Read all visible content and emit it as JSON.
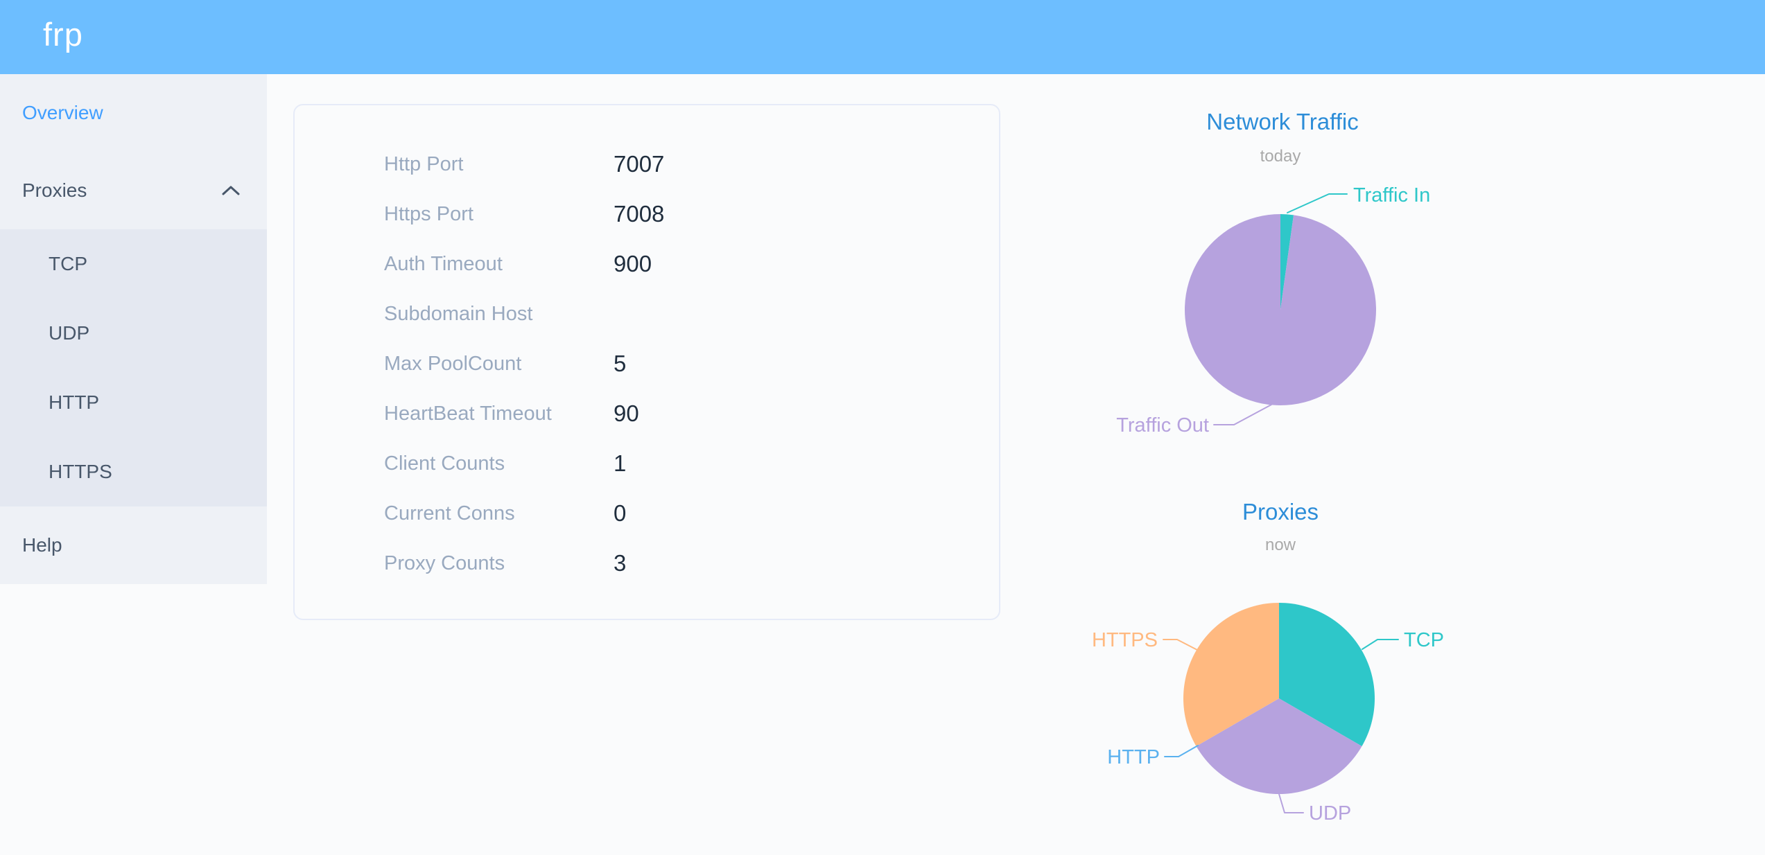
{
  "theme": {
    "header_bg": "#6dbeff",
    "sidebar_bg": "#eef1f6",
    "submenu_bg": "#e4e8f1",
    "menu_text": "#48576a",
    "menu_active_text": "#409eff",
    "page_bg": "#fafbfc",
    "card_border": "#e6ebf8",
    "config_label_color": "#99a9bf",
    "config_value_color": "#1f2d3d",
    "chart_title_color": "#2d8dd8",
    "chart_subtitle_color": "#a9a9a9"
  },
  "header": {
    "logo": "frp"
  },
  "sidebar": {
    "items": [
      {
        "label": "Overview",
        "active": true
      },
      {
        "label": "Proxies",
        "expanded": true
      },
      {
        "label": "Help"
      }
    ],
    "submenu": [
      "TCP",
      "UDP",
      "HTTP",
      "HTTPS"
    ]
  },
  "config": {
    "rows": [
      {
        "label": "Http Port",
        "value": "7007"
      },
      {
        "label": "Https Port",
        "value": "7008"
      },
      {
        "label": "Auth Timeout",
        "value": "900"
      },
      {
        "label": "Subdomain Host",
        "value": ""
      },
      {
        "label": "Max PoolCount",
        "value": "5"
      },
      {
        "label": "HeartBeat Timeout",
        "value": "90"
      },
      {
        "label": "Client Counts",
        "value": "1"
      },
      {
        "label": "Current Conns",
        "value": "0"
      },
      {
        "label": "Proxy Counts",
        "value": "3"
      }
    ]
  },
  "chart_data": [
    {
      "type": "pie",
      "title": "Network Traffic",
      "subtitle": "today",
      "label_position": "outside",
      "series": [
        {
          "name": "Traffic In",
          "value": 2.2,
          "color": "#2ec7c9"
        },
        {
          "name": "Traffic Out",
          "value": 97.8,
          "color": "#b6a2de"
        }
      ]
    },
    {
      "type": "pie",
      "title": "Proxies",
      "subtitle": "now",
      "label_position": "outside",
      "series": [
        {
          "name": "TCP",
          "value": 1,
          "color": "#2ec7c9"
        },
        {
          "name": "UDP",
          "value": 1,
          "color": "#b6a2de"
        },
        {
          "name": "HTTP",
          "value": 0,
          "color": "#5ab1ef"
        },
        {
          "name": "HTTPS",
          "value": 1,
          "color": "#ffb980"
        }
      ]
    }
  ]
}
